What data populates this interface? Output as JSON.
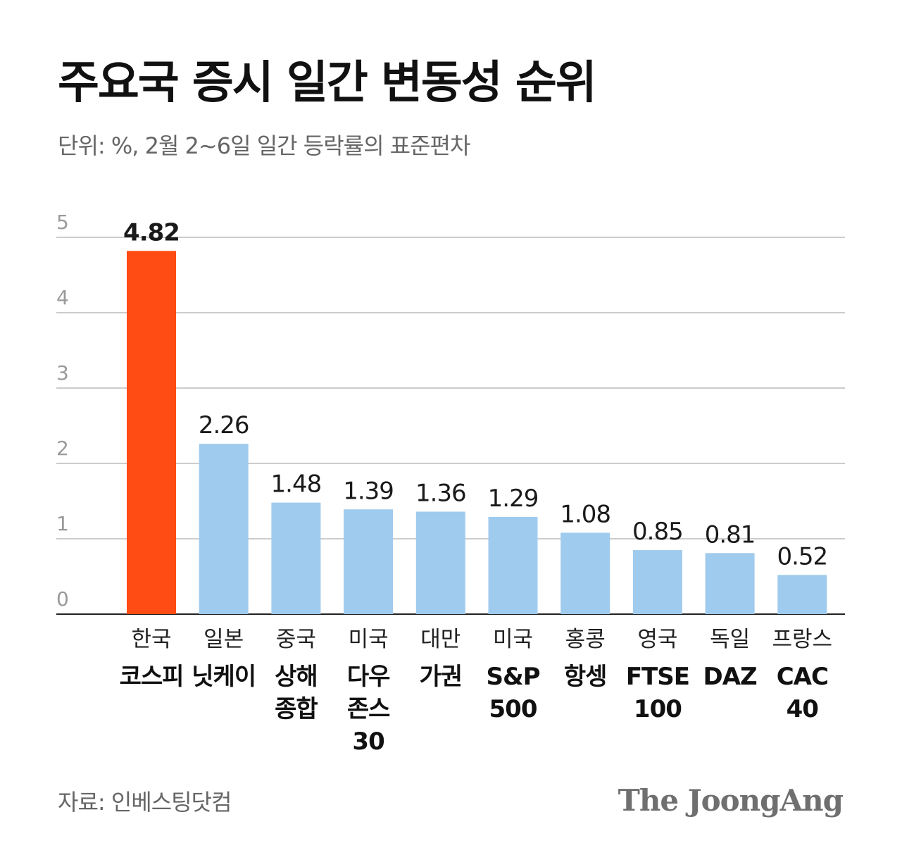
{
  "title": "주요국 증시 일간 변동성 순위",
  "subtitle": "단위: %, 2월 2~6일 일간 등락률의 표준편차",
  "source": "자료: 인베스팅닷컴",
  "brand": "The JoongAng",
  "colors": {
    "highlight": "#ff4b14",
    "bar": "#9fcbee",
    "grid": "#cccccc",
    "axis": "#222222"
  },
  "chart_data": {
    "type": "bar",
    "title": "주요국 증시 일간 변동성 순위",
    "ylabel": "%",
    "xlabel": "",
    "ylim": [
      0,
      5
    ],
    "y_ticks": [
      "0",
      "1",
      "2",
      "3",
      "4",
      "5"
    ],
    "categories": [
      {
        "country": "한국",
        "index": [
          "코스피"
        ],
        "value": 4.82,
        "label": "4.82",
        "highlight": true
      },
      {
        "country": "일본",
        "index": [
          "닛케이"
        ],
        "value": 2.26,
        "label": "2.26",
        "highlight": false
      },
      {
        "country": "중국",
        "index": [
          "상해",
          "종합"
        ],
        "value": 1.48,
        "label": "1.48",
        "highlight": false
      },
      {
        "country": "미국",
        "index": [
          "다우",
          "존스",
          "30"
        ],
        "value": 1.39,
        "label": "1.39",
        "highlight": false
      },
      {
        "country": "대만",
        "index": [
          "가권"
        ],
        "value": 1.36,
        "label": "1.36",
        "highlight": false
      },
      {
        "country": "미국",
        "index": [
          "S&P",
          "500"
        ],
        "value": 1.29,
        "label": "1.29",
        "highlight": false
      },
      {
        "country": "홍콩",
        "index": [
          "항셍"
        ],
        "value": 1.08,
        "label": "1.08",
        "highlight": false
      },
      {
        "country": "영국",
        "index": [
          "FTSE",
          "100"
        ],
        "value": 0.85,
        "label": "0.85",
        "highlight": false
      },
      {
        "country": "독일",
        "index": [
          "DAZ"
        ],
        "value": 0.81,
        "label": "0.81",
        "highlight": false
      },
      {
        "country": "프랑스",
        "index": [
          "CAC",
          "40"
        ],
        "value": 0.52,
        "label": "0.52",
        "highlight": false
      }
    ]
  }
}
